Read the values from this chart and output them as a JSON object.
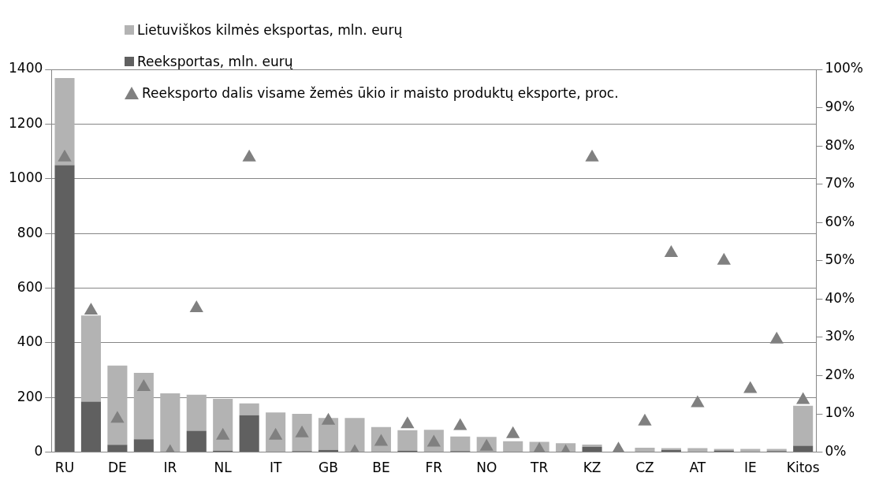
{
  "chart_data": {
    "type": "bar",
    "stacked": true,
    "categories": [
      "RU",
      null,
      "DE",
      null,
      "IR",
      null,
      "NL",
      null,
      "IT",
      null,
      "GB",
      null,
      "BE",
      null,
      "FR",
      null,
      "NO",
      null,
      "TR",
      null,
      "KZ",
      null,
      "CZ",
      null,
      "AT",
      null,
      "IE",
      null,
      "Kitos"
    ],
    "series": [
      {
        "name": "Reeksportas, mln. eurų",
        "color": "#606060",
        "values": [
          1050,
          185,
          27,
          47,
          0,
          78,
          5,
          135,
          null,
          4,
          8,
          0,
          2,
          5,
          2,
          4,
          null,
          2,
          0,
          0,
          20,
          0,
          null,
          8,
          2,
          6,
          2,
          4,
          23
        ]
      },
      {
        "name": "Lietuviškos kilmės eksportas, mln. eurų",
        "color": "#b3b3b3",
        "values": [
          318,
          315,
          290,
          243,
          215,
          132,
          190,
          43,
          145,
          136,
          117,
          125,
          90,
          75,
          80,
          53,
          56,
          38,
          38,
          33,
          8,
          null,
          16,
          7,
          13,
          6,
          10,
          8,
          147
        ]
      },
      {
        "name": "Reeksporto dalis visame žemės ūkio ir maisto produktų eksporte, proc.",
        "type": "scatter",
        "axis": "y2",
        "marker": "triangle",
        "color": "#808080",
        "values": [
          77,
          37,
          8.7,
          17,
          0,
          37.6,
          4.3,
          77,
          4.3,
          4.9,
          8.2,
          0,
          2.7,
          7.3,
          2.5,
          6.8,
          1.4,
          4.7,
          0.6,
          0,
          77,
          0.7,
          8,
          52,
          12.8,
          50,
          16.5,
          29.4,
          13.6
        ]
      }
    ],
    "ylim": [
      0,
      1400
    ],
    "yticks": [
      0,
      200,
      400,
      600,
      800,
      1000,
      1200,
      1400
    ],
    "y2lim": [
      0,
      100
    ],
    "y2ticks": [
      {
        "value": 0,
        "label": "0%"
      },
      {
        "value": 10,
        "label": "10%"
      },
      {
        "value": 20,
        "label": "20%"
      },
      {
        "value": 30,
        "label": "30%"
      },
      {
        "value": 40,
        "label": "40%"
      },
      {
        "value": 50,
        "label": "50%"
      },
      {
        "value": 60,
        "label": "60%"
      },
      {
        "value": 70,
        "label": "70%"
      },
      {
        "value": 80,
        "label": "80%"
      },
      {
        "value": 90,
        "label": "90%"
      },
      {
        "value": 100,
        "label": "100%"
      }
    ],
    "grid": "y",
    "legend": "top"
  }
}
